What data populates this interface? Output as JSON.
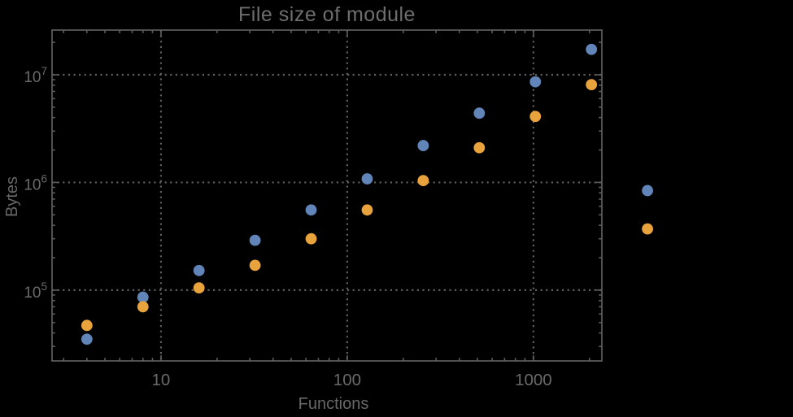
{
  "chart_data": {
    "type": "scatter",
    "title": "File size of module",
    "xlabel": "Functions",
    "ylabel": "Bytes",
    "grid": "dotted",
    "legend": "none",
    "colors": {
      "background": "#000000",
      "frame": "#5e5e5e",
      "grid": "#5e5e5e",
      "tick_text": "#6a6a6a",
      "series_blue": "#6185B8",
      "series_orange": "#E8A33C"
    },
    "x_axis": {
      "scale": "log",
      "lim": [
        2.6,
        2330
      ],
      "tick_values": [
        10,
        100,
        1000
      ],
      "tick_labels": [
        "10",
        "100",
        "1000"
      ]
    },
    "y_axis": {
      "scale": "log",
      "lim": [
        22000,
        26000000
      ],
      "tick_values": [
        100000,
        1000000,
        10000000
      ],
      "tick_labels": [
        {
          "base": "10",
          "exp": "5"
        },
        {
          "base": "10",
          "exp": "6"
        },
        {
          "base": "10",
          "exp": "7"
        }
      ]
    },
    "series": [
      {
        "name": "blue",
        "color": "#6185B8",
        "points": [
          [
            4,
            35000
          ],
          [
            8,
            86000
          ],
          [
            16,
            152000
          ],
          [
            32,
            290000
          ],
          [
            64,
            555000
          ],
          [
            128,
            1080000
          ],
          [
            256,
            2200000
          ],
          [
            512,
            4400000
          ],
          [
            1024,
            8600000
          ],
          [
            2048,
            17200000
          ],
          [
            4096,
            840000
          ]
        ]
      },
      {
        "name": "orange",
        "color": "#E8A33C",
        "points": [
          [
            4,
            47000
          ],
          [
            8,
            70000
          ],
          [
            16,
            105000
          ],
          [
            32,
            170000
          ],
          [
            64,
            300000
          ],
          [
            128,
            555000
          ],
          [
            256,
            1040000
          ],
          [
            512,
            2100000
          ],
          [
            1024,
            4100000
          ],
          [
            2048,
            8100000
          ],
          [
            4096,
            370000
          ]
        ]
      }
    ]
  }
}
